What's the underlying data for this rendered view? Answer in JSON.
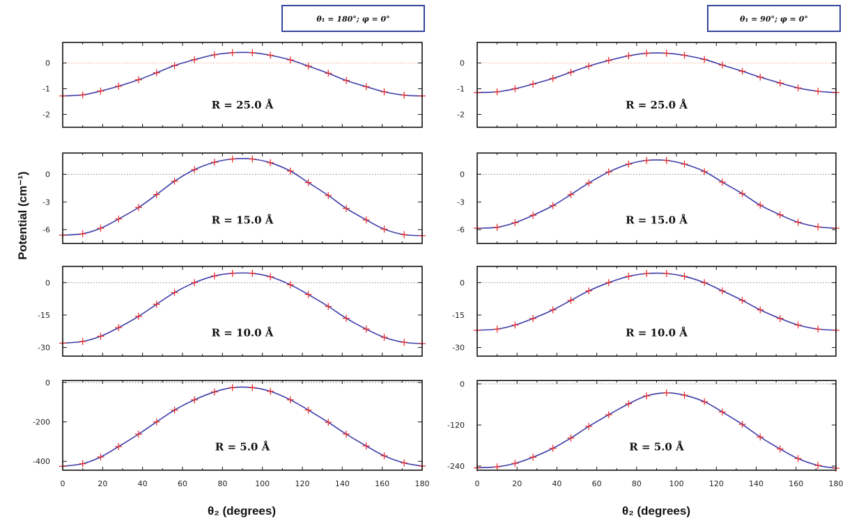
{
  "figure": {
    "ylabel": "Potential (cm⁻¹)",
    "xlabel": "θ₂ (degrees)"
  },
  "chart_data": [
    {
      "type": "line",
      "column": "left",
      "row": 0,
      "header": "θ₁ = 180°; φ = 0°",
      "label": "R = 25.0 Å",
      "xlim": [
        0,
        180
      ],
      "ylim": [
        -2.5,
        0.8
      ],
      "yticks": [
        0,
        -1,
        -2
      ],
      "yticklabels": [
        "0",
        "-1",
        "-2"
      ],
      "xticks": [
        0,
        20,
        40,
        60,
        80,
        100,
        120,
        140,
        160,
        180
      ],
      "xticklabels": [],
      "x": [
        0,
        10,
        19,
        28,
        38,
        47,
        56,
        66,
        76,
        85,
        95,
        104,
        114,
        123,
        133,
        142,
        152,
        161,
        171,
        180
      ],
      "y": [
        -1.28,
        -1.24,
        -1.09,
        -0.9,
        -0.65,
        -0.38,
        -0.1,
        0.13,
        0.32,
        0.4,
        0.4,
        0.3,
        0.12,
        -0.12,
        -0.4,
        -0.68,
        -0.92,
        -1.12,
        -1.25,
        -1.28
      ],
      "curve_color": "#3b3aa8",
      "marker_color": "#e8302f"
    },
    {
      "type": "line",
      "column": "left",
      "row": 1,
      "label": "R = 15.0 Å",
      "xlim": [
        0,
        180
      ],
      "ylim": [
        -7.5,
        2.3
      ],
      "yticks": [
        0,
        -3,
        -6
      ],
      "yticklabels": [
        "0",
        "-3",
        "-6"
      ],
      "xticks": [
        0,
        20,
        40,
        60,
        80,
        100,
        120,
        140,
        160,
        180
      ],
      "xticklabels": [],
      "x": [
        0,
        10,
        19,
        28,
        38,
        47,
        56,
        66,
        76,
        85,
        95,
        104,
        114,
        123,
        133,
        142,
        152,
        161,
        171,
        180
      ],
      "y": [
        -6.6,
        -6.45,
        -5.85,
        -4.85,
        -3.6,
        -2.2,
        -0.75,
        0.5,
        1.3,
        1.65,
        1.65,
        1.25,
        0.35,
        -0.9,
        -2.3,
        -3.7,
        -4.95,
        -5.95,
        -6.55,
        -6.65
      ],
      "curve_color": "#3b3aa8",
      "marker_color": "#e8302f"
    },
    {
      "type": "line",
      "column": "left",
      "row": 2,
      "label": "R = 10.0 Å",
      "xlim": [
        0,
        180
      ],
      "ylim": [
        -34,
        7.5
      ],
      "yticks": [
        0,
        -15,
        -30
      ],
      "yticklabels": [
        "0",
        "-15",
        "-30"
      ],
      "xticks": [
        0,
        20,
        40,
        60,
        80,
        100,
        120,
        140,
        160,
        180
      ],
      "xticklabels": [],
      "x": [
        0,
        10,
        19,
        28,
        38,
        47,
        56,
        66,
        76,
        85,
        95,
        104,
        114,
        123,
        133,
        142,
        152,
        161,
        171,
        180
      ],
      "y": [
        -28,
        -27.2,
        -24.8,
        -20.8,
        -15.6,
        -10,
        -4.6,
        0,
        3.1,
        4.3,
        4.3,
        2.7,
        -1,
        -5.5,
        -11,
        -16.5,
        -21.5,
        -25.3,
        -27.6,
        -28.2
      ],
      "curve_color": "#3b3aa8",
      "marker_color": "#e8302f"
    },
    {
      "type": "line",
      "column": "left",
      "row": 3,
      "label": "R = 5.0 Å",
      "xlim": [
        0,
        180
      ],
      "ylim": [
        -445,
        10
      ],
      "yticks": [
        0,
        -200,
        -400
      ],
      "yticklabels": [
        "0",
        "-200",
        "-400"
      ],
      "xticks": [
        0,
        20,
        40,
        60,
        80,
        100,
        120,
        140,
        160,
        180
      ],
      "xticklabels": [
        "0",
        "20",
        "40",
        "60",
        "80",
        "100",
        "120",
        "140",
        "160",
        "180"
      ],
      "x": [
        0,
        10,
        19,
        28,
        38,
        47,
        56,
        66,
        76,
        85,
        95,
        104,
        114,
        123,
        133,
        142,
        152,
        161,
        171,
        180
      ],
      "y": [
        -425,
        -412,
        -378,
        -325,
        -262,
        -200,
        -140,
        -88,
        -48,
        -26,
        -26,
        -45,
        -88,
        -140,
        -202,
        -262,
        -322,
        -372,
        -408,
        -424
      ],
      "curve_color": "#3b3aa8",
      "marker_color": "#e8302f"
    },
    {
      "type": "line",
      "column": "right",
      "row": 0,
      "header": "θ₁ = 90°; φ = 0°",
      "label": "R = 25.0 Å",
      "xlim": [
        0,
        180
      ],
      "ylim": [
        -2.5,
        0.8
      ],
      "yticks": [
        0,
        -1,
        -2
      ],
      "yticklabels": [
        "0",
        "-1",
        "-2"
      ],
      "xticks": [
        0,
        20,
        40,
        60,
        80,
        100,
        120,
        140,
        160,
        180
      ],
      "xticklabels": [],
      "x": [
        0,
        10,
        19,
        28,
        38,
        47,
        56,
        66,
        76,
        85,
        95,
        104,
        114,
        123,
        133,
        142,
        152,
        161,
        171,
        180
      ],
      "y": [
        -1.15,
        -1.12,
        -1.0,
        -0.82,
        -0.6,
        -0.36,
        -0.12,
        0.1,
        0.28,
        0.38,
        0.38,
        0.3,
        0.14,
        -0.08,
        -0.32,
        -0.55,
        -0.78,
        -0.97,
        -1.1,
        -1.15
      ],
      "curve_color": "#3b3aa8",
      "marker_color": "#e8302f"
    },
    {
      "type": "line",
      "column": "right",
      "row": 1,
      "label": "R = 15.0 Å",
      "xlim": [
        0,
        180
      ],
      "ylim": [
        -7.5,
        2.3
      ],
      "yticks": [
        0,
        -3,
        -6
      ],
      "yticklabels": [
        "0",
        "-3",
        "-6"
      ],
      "xticks": [
        0,
        20,
        40,
        60,
        80,
        100,
        120,
        140,
        160,
        180
      ],
      "xticklabels": [],
      "x": [
        0,
        10,
        19,
        28,
        38,
        47,
        56,
        66,
        76,
        85,
        95,
        104,
        114,
        123,
        133,
        142,
        152,
        161,
        171,
        180
      ],
      "y": [
        -5.85,
        -5.75,
        -5.25,
        -4.45,
        -3.4,
        -2.2,
        -0.95,
        0.25,
        1.1,
        1.5,
        1.5,
        1.1,
        0.3,
        -0.85,
        -2.1,
        -3.35,
        -4.4,
        -5.2,
        -5.7,
        -5.85
      ],
      "curve_color": "#3b3aa8",
      "marker_color": "#e8302f"
    },
    {
      "type": "line",
      "column": "right",
      "row": 2,
      "label": "R = 10.0 Å",
      "xlim": [
        0,
        180
      ],
      "ylim": [
        -34,
        7.5
      ],
      "yticks": [
        0,
        -15,
        -30
      ],
      "yticklabels": [
        "0",
        "-15",
        "-30"
      ],
      "xticks": [
        0,
        20,
        40,
        60,
        80,
        100,
        120,
        140,
        160,
        180
      ],
      "xticklabels": [],
      "x": [
        0,
        10,
        19,
        28,
        38,
        47,
        56,
        66,
        76,
        85,
        95,
        104,
        114,
        123,
        133,
        142,
        152,
        161,
        171,
        180
      ],
      "y": [
        -22,
        -21.5,
        -19.6,
        -16.6,
        -12.6,
        -8.2,
        -3.8,
        0,
        2.9,
        4.2,
        4.2,
        2.9,
        0,
        -3.8,
        -8.2,
        -12.6,
        -16.6,
        -19.6,
        -21.5,
        -22
      ],
      "curve_color": "#3b3aa8",
      "marker_color": "#e8302f"
    },
    {
      "type": "line",
      "column": "right",
      "row": 3,
      "label": "R = 5.0 Å",
      "xlim": [
        0,
        180
      ],
      "ylim": [
        -252,
        10
      ],
      "yticks": [
        0,
        -120,
        -240
      ],
      "yticklabels": [
        "0",
        "-120",
        "-240"
      ],
      "xticks": [
        0,
        20,
        40,
        60,
        80,
        100,
        120,
        140,
        160,
        180
      ],
      "xticklabels": [
        "0",
        "20",
        "40",
        "60",
        "80",
        "100",
        "120",
        "140",
        "160",
        "180"
      ],
      "x": [
        0,
        10,
        19,
        28,
        38,
        47,
        56,
        66,
        76,
        85,
        95,
        104,
        114,
        123,
        133,
        142,
        152,
        161,
        171,
        180
      ],
      "y": [
        -245,
        -242,
        -232,
        -214,
        -188,
        -158,
        -124,
        -90,
        -58,
        -35,
        -26,
        -33,
        -52,
        -82,
        -118,
        -155,
        -190,
        -218,
        -238,
        -246
      ],
      "curve_color": "#3b3aa8",
      "marker_color": "#e8302f"
    }
  ]
}
